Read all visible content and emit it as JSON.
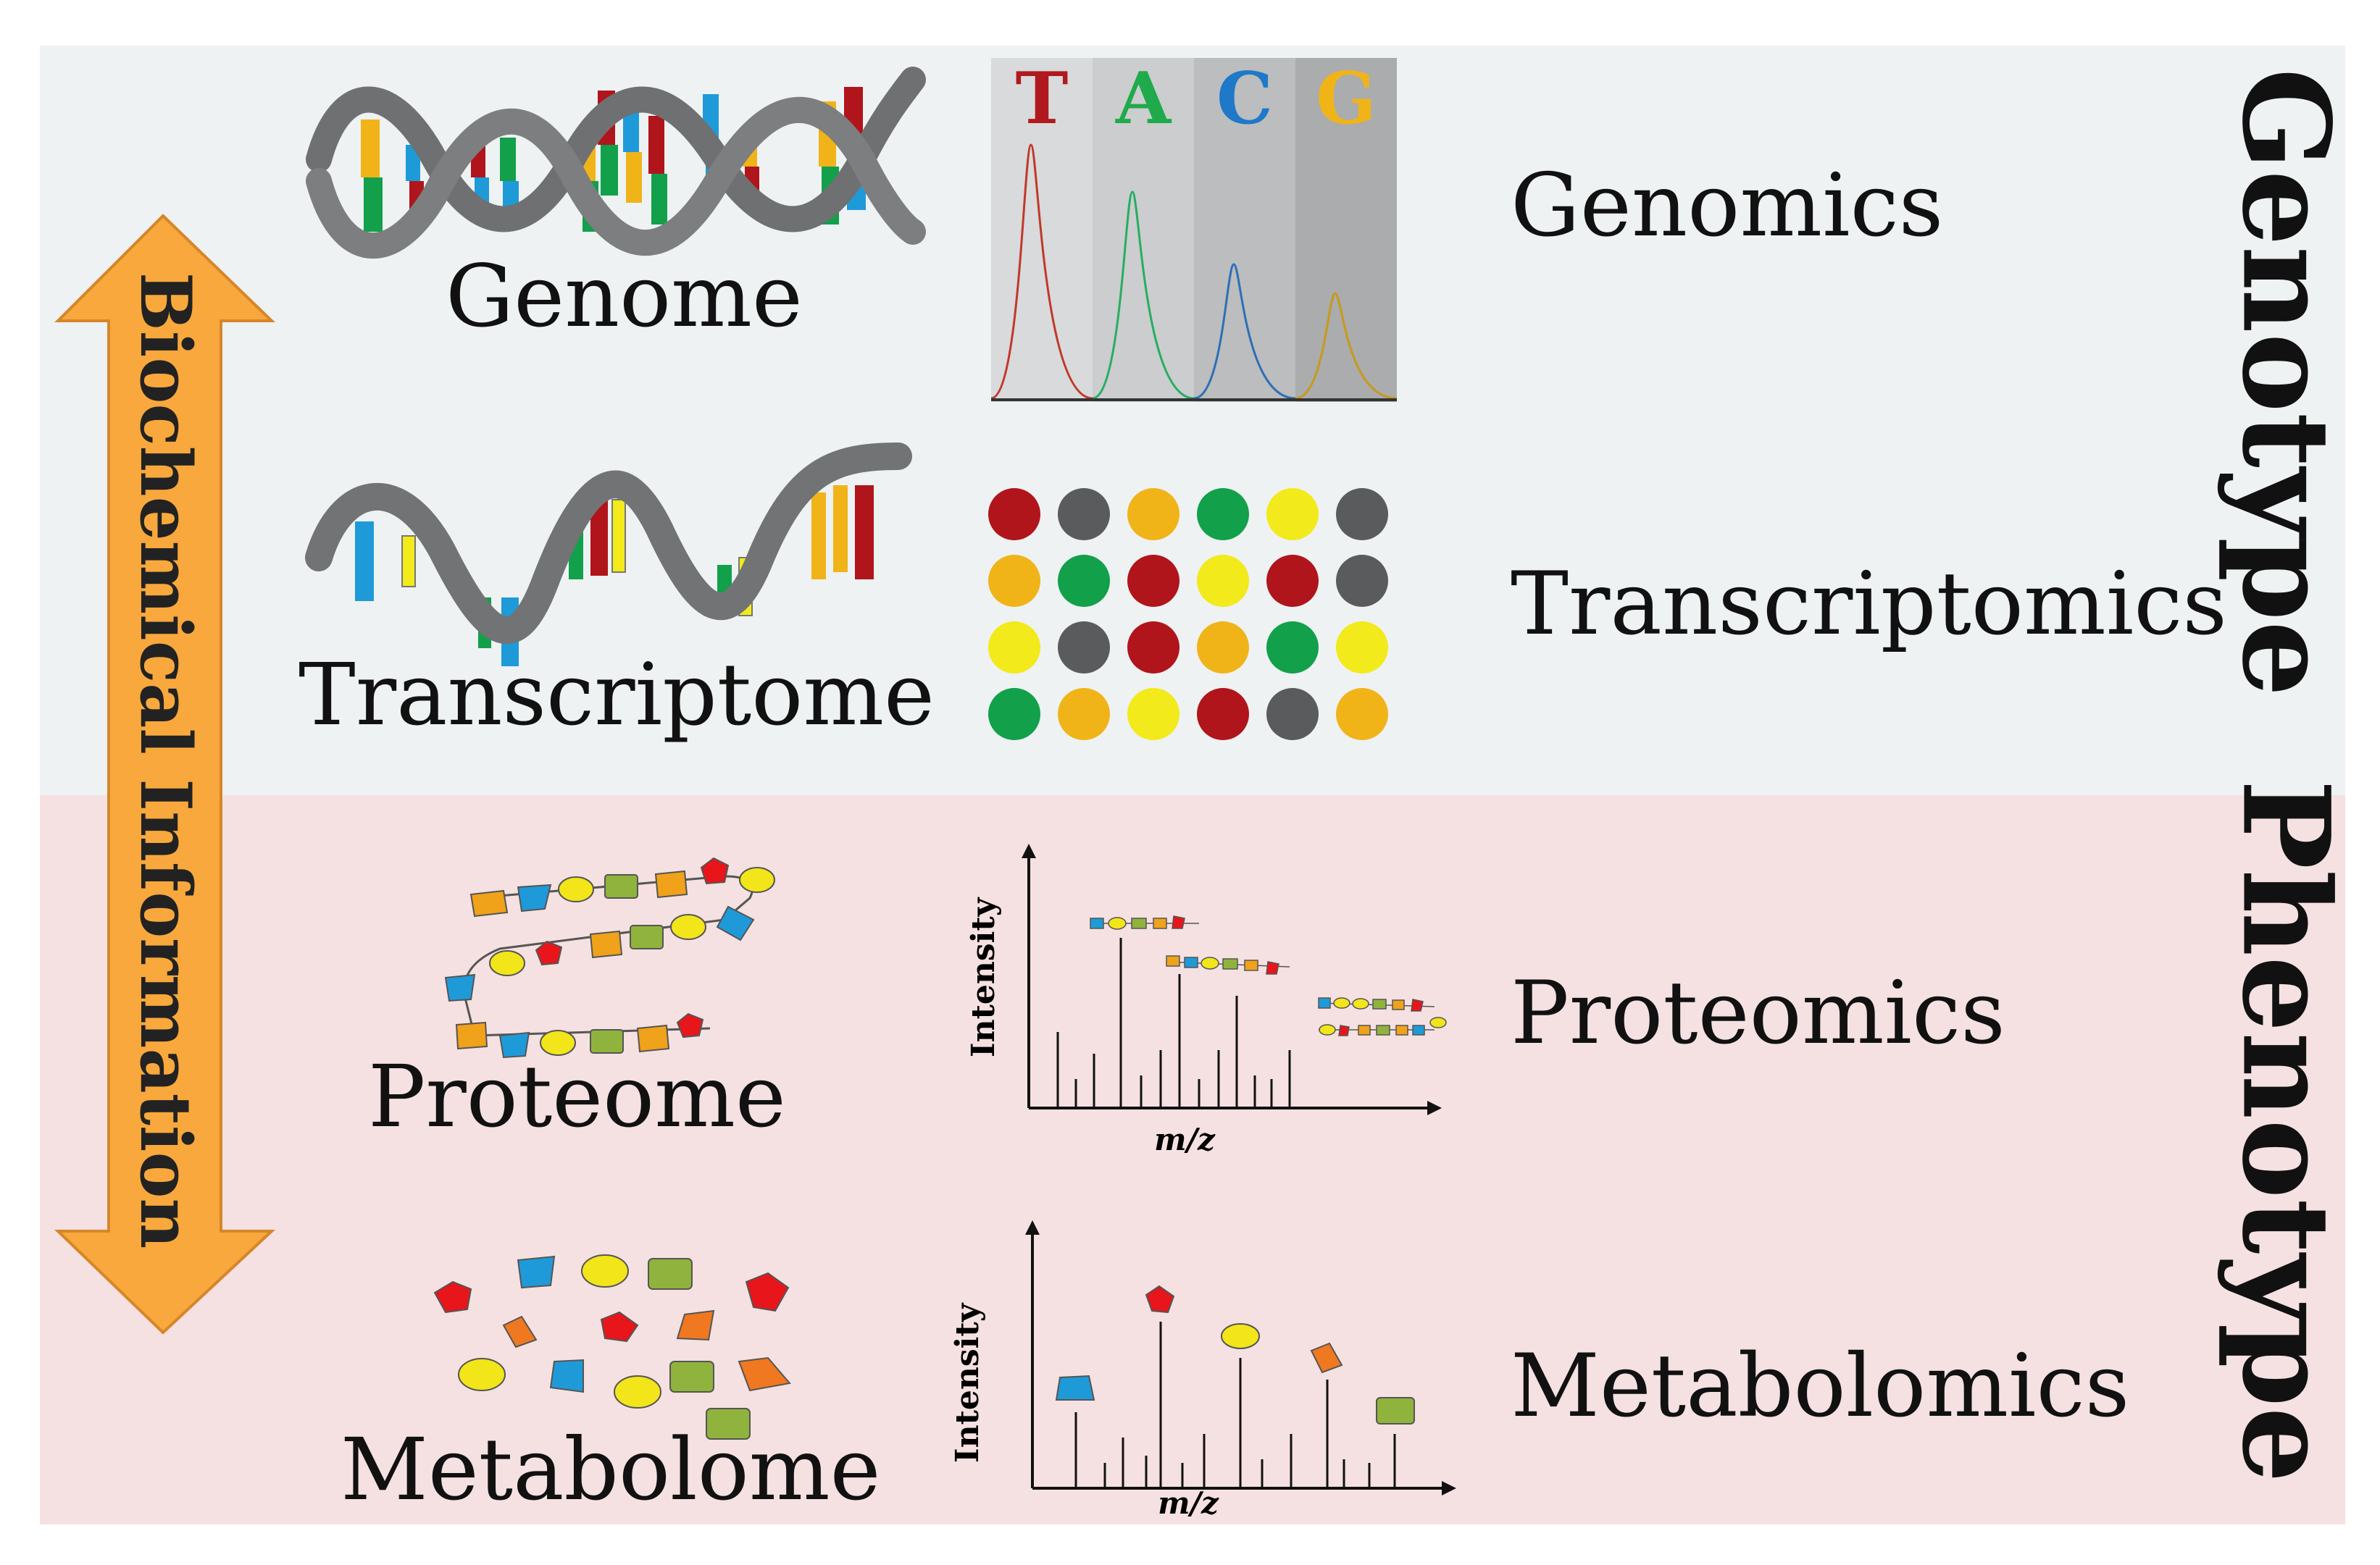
{
  "molecules": {
    "genome": "Genome",
    "transcriptome": "Transcriptome",
    "proteome": "Proteome",
    "metabolome": "Metabolome"
  },
  "omics": {
    "genomics": "Genomics",
    "transcriptomics": "Transcriptomics",
    "proteomics": "Proteomics",
    "metabolomics": "Metabolomics"
  },
  "categories": {
    "genotype": "Genotype",
    "phenotype": "Phenotype"
  },
  "arrow_label": "Biochemical Information",
  "sequencing": {
    "bases": [
      {
        "letter": "T",
        "color": "#b0191e"
      },
      {
        "letter": "A",
        "color": "#1faa4b"
      },
      {
        "letter": "C",
        "color": "#1f78c8"
      },
      {
        "letter": "G",
        "color": "#f0b419"
      }
    ]
  },
  "microarray": {
    "rows": [
      [
        "#b0151b",
        "#5a5b5c",
        "#f0b419",
        "#12a04a",
        "#f2ea1a",
        "#5a5b5c"
      ],
      [
        "#f0b419",
        "#12a04a",
        "#b0151b",
        "#f2ea1a",
        "#b0151b",
        "#5a5b5c"
      ],
      [
        "#f2ea1a",
        "#5a5b5c",
        "#b0151b",
        "#f0b419",
        "#12a04a",
        "#f2ea1a"
      ],
      [
        "#12a04a",
        "#f0b419",
        "#f2ea1a",
        "#b0151b",
        "#5a5b5c",
        "#f0b419"
      ]
    ]
  },
  "spectra": {
    "ylabel": "Intensity",
    "xlabel": "m/z"
  },
  "colors": {
    "arrow": "#f8a83c",
    "genotype_band": "#eef2f3",
    "phenotype_band": "#f5e1e1"
  }
}
